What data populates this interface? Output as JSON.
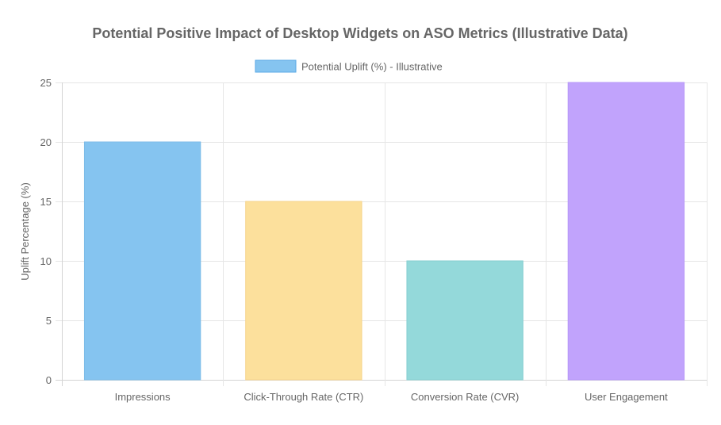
{
  "chart_data": {
    "type": "bar",
    "title": "Potential Positive Impact of Desktop Widgets on ASO Metrics (Illustrative Data)",
    "xlabel": "",
    "ylabel": "Uplift Percentage (%)",
    "ylim": [
      0,
      25
    ],
    "yticks": [
      0,
      5,
      10,
      15,
      20,
      25
    ],
    "categories": [
      "Impressions",
      "Click-Through Rate (CTR)",
      "Conversion Rate (CVR)",
      "User Engagement"
    ],
    "series": [
      {
        "name": "Potential Uplift (%) - Illustrative",
        "values": [
          20,
          15,
          10,
          25
        ],
        "colors": [
          "#85c4f0",
          "#fce09c",
          "#94d9da",
          "#c1a3fc"
        ],
        "border_colors": [
          "#7dbbe8",
          "#f6d48c",
          "#86cfd0",
          "#b697f8"
        ],
        "legend_color": "#85c4f0",
        "legend_border": "#5aa9e6"
      }
    ],
    "grid": true,
    "legend_position": "top"
  }
}
